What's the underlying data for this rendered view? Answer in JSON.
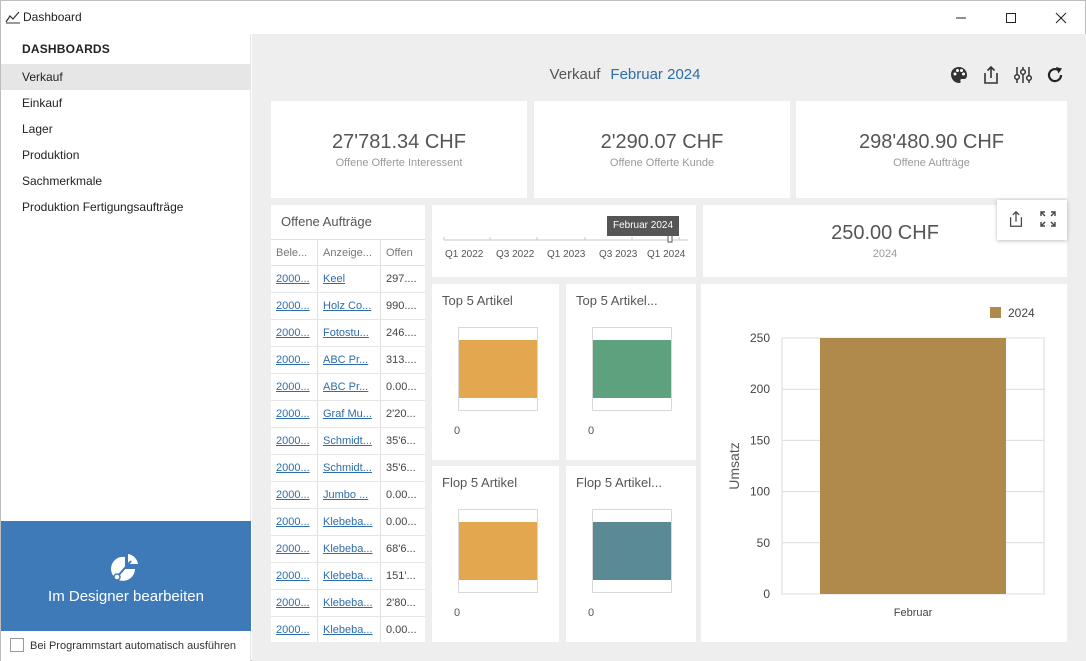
{
  "window": {
    "title": "Dashboard"
  },
  "sidebar": {
    "heading": "DASHBOARDS",
    "items": [
      {
        "label": "Verkauf",
        "active": true
      },
      {
        "label": "Einkauf",
        "active": false
      },
      {
        "label": "Lager",
        "active": false
      },
      {
        "label": "Produktion",
        "active": false
      },
      {
        "label": "Sachmerkmale",
        "active": false
      },
      {
        "label": "Produktion Fertigungsaufträge",
        "active": false
      }
    ],
    "designer_label": "Im Designer bearbeiten",
    "autostart_label": "Bei Programmstart automatisch ausführen",
    "autostart_checked": false
  },
  "header": {
    "dashboard": "Verkauf",
    "period": "Februar 2024",
    "toolbar_icons": [
      "palette-icon",
      "export-icon",
      "parameters-icon",
      "refresh-icon"
    ]
  },
  "kpis": [
    {
      "value": "27'781.34 CHF",
      "label": "Offene Offerte Interessent"
    },
    {
      "value": "2'290.07 CHF",
      "label": "Offene Offerte Kunde"
    },
    {
      "value": "298'480.90 CHF",
      "label": "Offene Aufträge"
    }
  ],
  "orders": {
    "title": "Offene Aufträge",
    "columns": [
      "Bele...",
      "Anzeige...",
      "Offen"
    ],
    "rows": [
      [
        "2000...",
        "Keel",
        "297...."
      ],
      [
        "2000...",
        "Holz Co...",
        "990...."
      ],
      [
        "2000...",
        "Fotostu...",
        "246...."
      ],
      [
        "2000...",
        "ABC Pr...",
        "313...."
      ],
      [
        "2000...",
        "ABC Pr...",
        "0.00..."
      ],
      [
        "2000...",
        "Graf Mu...",
        "2'20..."
      ],
      [
        "2000...",
        "Schmidt...",
        "35'6..."
      ],
      [
        "2000...",
        "Schmidt...",
        "35'6..."
      ],
      [
        "2000...",
        "Jumbo ...",
        "0.00..."
      ],
      [
        "2000...",
        "Klebeba...",
        "0.00..."
      ],
      [
        "2000...",
        "Klebeba...",
        "68'6..."
      ],
      [
        "2000...",
        "Klebeba...",
        "151'..."
      ],
      [
        "2000...",
        "Klebeba...",
        "2'80..."
      ],
      [
        "2000...",
        "Klebeba...",
        "0.00..."
      ]
    ]
  },
  "range_selector": {
    "ticks": [
      "Q1 2022",
      "Q3 2022",
      "Q1 2023",
      "Q3 2023",
      "Q1 2024"
    ],
    "tooltip": "Februar 2024"
  },
  "kpi_year": {
    "value": "250.00 CHF",
    "label": "2024"
  },
  "floating_tools": [
    "export-icon",
    "maximize-icon"
  ],
  "mini_charts": [
    {
      "title": "Top 5 Artikel",
      "zero": "0",
      "color": "#e3a74f"
    },
    {
      "title": "Top 5 Artikel...",
      "zero": "0",
      "color": "#5ea17f"
    },
    {
      "title": "Flop 5 Artikel",
      "zero": "0",
      "color": "#e3a74f"
    },
    {
      "title": "Flop 5 Artikel...",
      "zero": "0",
      "color": "#5a8a93"
    }
  ],
  "chart_data": {
    "type": "bar",
    "categories": [
      "Februar"
    ],
    "series": [
      {
        "name": "2024",
        "values": [
          250
        ],
        "color": "#b08a4c"
      }
    ],
    "xlabel": "",
    "ylabel": "Umsatz",
    "ylim": [
      0,
      250
    ],
    "yticks": [
      0,
      50,
      100,
      150,
      200,
      250
    ],
    "grid": true,
    "legend": "top-right"
  }
}
